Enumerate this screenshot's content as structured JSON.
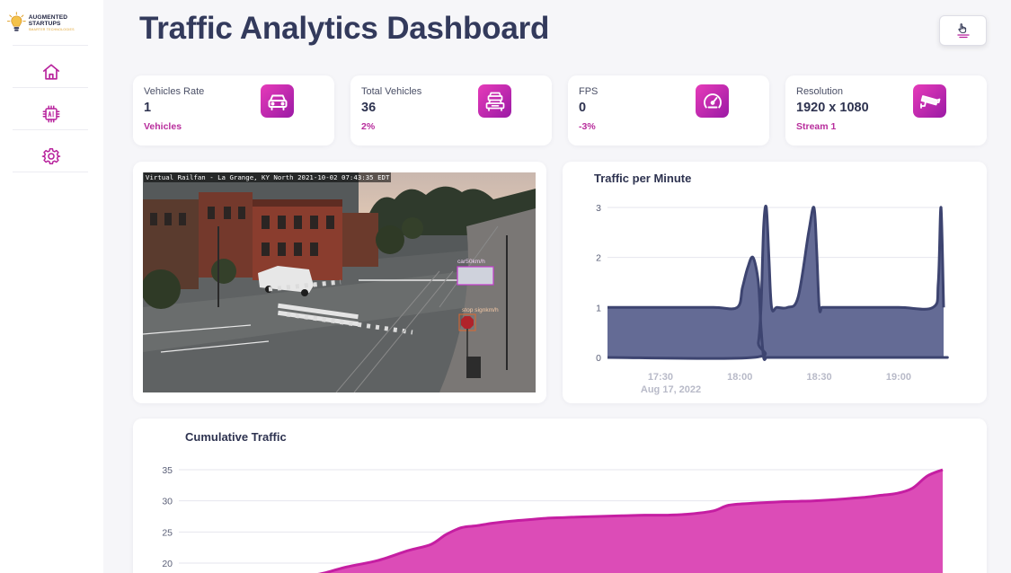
{
  "app": {
    "title": "Traffic Analytics Dashboard",
    "brand_name": "AUGMENTED STARTUPS",
    "brand_tagline": "SMARTER TECHNOLOGIES"
  },
  "sidebar": {
    "items": [
      {
        "icon": "home-icon"
      },
      {
        "icon": "ai-chip-icon"
      },
      {
        "icon": "gear-icon"
      }
    ]
  },
  "stats": [
    {
      "title": "Vehicles Rate",
      "value": "1",
      "sub": "Vehicles",
      "icon": "car-icon"
    },
    {
      "title": "Total Vehicles",
      "value": "36",
      "sub": "2%",
      "icon": "traffic-icon"
    },
    {
      "title": "FPS",
      "value": "0",
      "sub": "-3%",
      "icon": "speedometer-icon"
    },
    {
      "title": "Resolution",
      "value": "1920 x 1080",
      "sub": "Stream 1",
      "icon": "camera-icon"
    }
  ],
  "camera": {
    "overlay": "Virtual Railfan - La Grange, KY North   2021-10-02 07:43:35 EDT",
    "detections": [
      "car50km/h",
      "stop signkm/h"
    ]
  },
  "colors": {
    "accent": "#b82d9c",
    "title": "#333a5c",
    "navy_series": "#3d4470",
    "navy_fill": "#646b95",
    "magenta_series": "#c51ea2"
  },
  "chart_data": [
    {
      "type": "area",
      "title": "Traffic per Minute",
      "xlabel": "",
      "ylabel": "",
      "ylim": [
        0,
        3
      ],
      "yticks": [
        "0",
        "1",
        "2",
        "3"
      ],
      "xticks": [
        "17:30",
        "18:00",
        "18:30",
        "19:00"
      ],
      "x_date_label": "Aug 17, 2022",
      "grid": true,
      "legend": "none",
      "series": [
        {
          "x": [
            "17:10",
            "17:30",
            "17:50",
            "17:59",
            "18:01",
            "18:03",
            "18:05",
            "18:07",
            "18:08",
            "18:09",
            "18:10",
            "18:11",
            "18:25",
            "18:26",
            "18:28",
            "18:29",
            "18:30",
            "18:31",
            "18:32",
            "19:15",
            "19:16",
            "19:17"
          ],
          "values": [
            1,
            1,
            1,
            1,
            1.4,
            1.8,
            2,
            1.5,
            0.6,
            0,
            0,
            0,
            0,
            0,
            0,
            0,
            0,
            0,
            0,
            0,
            0,
            0
          ]
        },
        {
          "x": [
            "17:10",
            "18:05",
            "18:07",
            "18:08",
            "18:09",
            "18:10",
            "18:11",
            "18:12",
            "18:14",
            "18:18",
            "18:22",
            "18:26",
            "18:28",
            "18:29",
            "18:30",
            "18:31",
            "18:33",
            "18:40",
            "19:00",
            "19:13",
            "19:15",
            "19:16",
            "19:17"
          ],
          "values": [
            0,
            0,
            0.3,
            1,
            2.6,
            3,
            2,
            1,
            1,
            1,
            1.2,
            2.5,
            3,
            2.2,
            1,
            1,
            1,
            1,
            1,
            1,
            1.5,
            3,
            1
          ]
        }
      ]
    },
    {
      "type": "area",
      "title": "Cumulative Traffic",
      "xlabel": "",
      "ylabel": "",
      "ylim": [
        20,
        35
      ],
      "yticks": [
        "20",
        "25",
        "30",
        "35"
      ],
      "grid": true,
      "legend": "none",
      "series": [
        {
          "x": [
            0,
            5,
            8,
            12,
            15,
            17,
            19,
            22,
            26,
            30,
            33,
            35,
            37,
            39,
            41,
            44,
            46,
            48,
            50,
            52,
            55,
            58,
            61,
            64,
            67,
            70,
            72,
            75,
            78,
            80,
            83,
            86,
            88,
            90,
            92,
            94,
            96,
            98,
            100
          ],
          "values": [
            18,
            18,
            18,
            18,
            18,
            18,
            18.4,
            19.4,
            20.4,
            22,
            23,
            24.6,
            25.7,
            26,
            26.4,
            26.8,
            27,
            27.2,
            27.3,
            27.4,
            27.5,
            27.6,
            27.7,
            27.7,
            27.9,
            28.4,
            29.3,
            29.6,
            29.8,
            29.9,
            30,
            30.2,
            30.4,
            30.6,
            30.9,
            31.2,
            32,
            34,
            35
          ]
        }
      ]
    }
  ]
}
